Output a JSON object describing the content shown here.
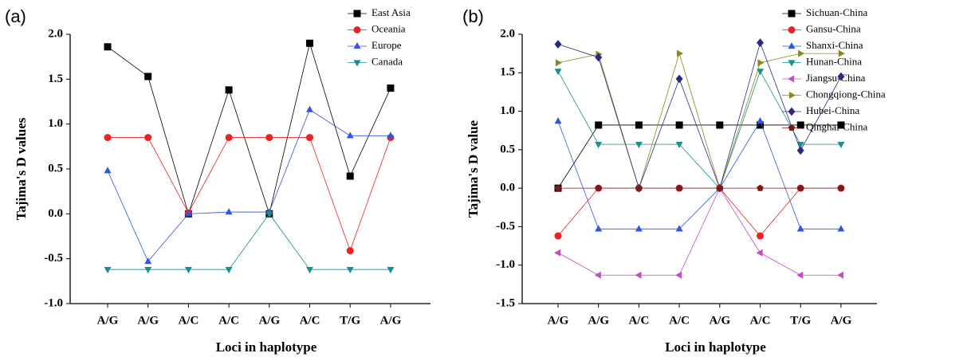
{
  "chart_data": [
    {
      "type": "line",
      "panel_label": "(a)",
      "y_label": "Tajima's D values",
      "x_label": "Loci in haplotype",
      "categories": [
        "A/G",
        "A/G",
        "A/C",
        "A/C",
        "A/G",
        "A/C",
        "T/G",
        "A/G"
      ],
      "ylim": [
        -1.0,
        2.0
      ],
      "yticks": [
        {
          "value": -1.0,
          "label": "-1.0"
        },
        {
          "value": -0.5,
          "label": "-0.5"
        },
        {
          "value": 0,
          "label": "0.0"
        },
        {
          "value": 0.5,
          "label": "0.5"
        },
        {
          "value": 1.0,
          "label": "1.0"
        },
        {
          "value": 1.5,
          "label": "1.5"
        },
        {
          "value": 2.0,
          "label": "2.0"
        }
      ],
      "grid": false,
      "legend": "top-right",
      "series": [
        {
          "name": "East Asia",
          "color": "#000000",
          "marker": "square",
          "values": [
            1.86,
            1.53,
            0,
            1.38,
            0,
            1.9,
            0.42,
            1.4
          ]
        },
        {
          "name": "Oceania",
          "color": "#ee2222",
          "marker": "circle",
          "values": [
            0.85,
            0.85,
            0.01,
            0.85,
            0.85,
            0.85,
            -0.41,
            0.85
          ]
        },
        {
          "name": "Europe",
          "color": "#3355dd",
          "marker": "triangle-up",
          "values": [
            0.48,
            -0.53,
            0,
            0.02,
            0.02,
            1.16,
            0.87,
            0.87
          ]
        },
        {
          "name": "Canada",
          "color": "#1a8f8f",
          "marker": "triangle-down",
          "values": [
            -0.62,
            -0.62,
            -0.62,
            -0.62,
            0,
            -0.62,
            -0.62,
            -0.62
          ]
        }
      ]
    },
    {
      "type": "line",
      "panel_label": "(b)",
      "y_label": "Tajima's D value",
      "x_label": "Loci in haplotype",
      "categories": [
        "A/G",
        "A/G",
        "A/C",
        "A/C",
        "A/G",
        "A/C",
        "T/G",
        "A/G"
      ],
      "ylim": [
        -1.5,
        2.0
      ],
      "yticks": [
        {
          "value": -1.5,
          "label": "-1.5"
        },
        {
          "value": -1.0,
          "label": "-1.0"
        },
        {
          "value": -0.5,
          "label": "-0.5"
        },
        {
          "value": 0,
          "label": "0.0"
        },
        {
          "value": 0.5,
          "label": "0.5"
        },
        {
          "value": 1.0,
          "label": "1.0"
        },
        {
          "value": 1.5,
          "label": "1.5"
        },
        {
          "value": 2.0,
          "label": "2.0"
        }
      ],
      "grid": false,
      "legend": "top-right",
      "series": [
        {
          "name": "Sichuan-China",
          "color": "#000000",
          "marker": "square",
          "values": [
            0,
            0.82,
            0.82,
            0.82,
            0.82,
            0.82,
            0.82,
            0.82
          ]
        },
        {
          "name": "Gansu-China",
          "color": "#ee2222",
          "marker": "circle",
          "values": [
            -0.62,
            0,
            0,
            0,
            0,
            -0.62,
            0,
            0
          ]
        },
        {
          "name": "Shanxi-China",
          "color": "#3355dd",
          "marker": "triangle-up",
          "values": [
            0.87,
            -0.53,
            -0.53,
            -0.53,
            0,
            0.87,
            -0.53,
            -0.53
          ]
        },
        {
          "name": "Hunan-China",
          "color": "#1a8f8f",
          "marker": "triangle-down",
          "values": [
            1.52,
            0.57,
            0.57,
            0.57,
            0,
            1.52,
            0.57,
            0.57
          ]
        },
        {
          "name": "Jiangsu-China",
          "color": "#c050c0",
          "marker": "triangle-left",
          "values": [
            -0.84,
            -1.13,
            -1.13,
            -1.13,
            0,
            -0.84,
            -1.13,
            -1.13
          ]
        },
        {
          "name": "Chongqiong-China",
          "color": "#8a8a1a",
          "marker": "triangle-right",
          "values": [
            1.63,
            1.74,
            0,
            1.75,
            0,
            1.63,
            1.75,
            1.75
          ]
        },
        {
          "name": "Hubei-China",
          "color": "#2a2a80",
          "marker": "diamond",
          "values": [
            1.87,
            1.7,
            0,
            1.42,
            0,
            1.89,
            0.49,
            1.45
          ]
        },
        {
          "name": "Qinghai-China",
          "color": "#7a1a1a",
          "marker": "pentagon",
          "values": [
            0,
            0,
            0,
            0,
            0,
            0,
            0,
            0
          ]
        }
      ]
    }
  ]
}
